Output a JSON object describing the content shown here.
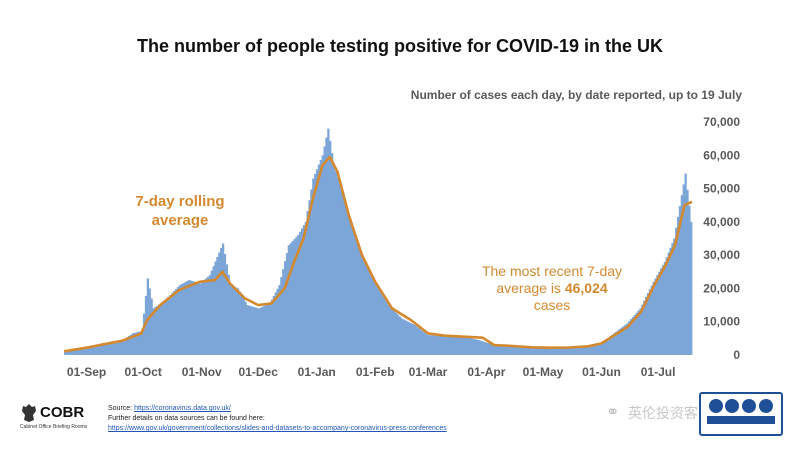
{
  "header": {
    "title": "The number of people testing positive for COVID-19 in the UK",
    "subtitle": "Number of cases each day, by date reported, up to 19 July"
  },
  "annotations": {
    "rolling_label": "7-day rolling average",
    "recent_text_1": "The most recent 7-day average is",
    "recent_value": "46,024",
    "recent_text_2": "cases"
  },
  "footer": {
    "org": "COBR",
    "org_sub": "Cabinet Office Briefing Rooms",
    "source_label": "Source:",
    "source_url": "https://coronavirus.data.gov.uk/",
    "details_text": "Further details on data sources can be found here:",
    "details_url": "https://www.gov.uk/government/collections/slides-and-datasets-to-accompany-coronavirus-press-conferences",
    "wechat_name": "英伦投资客"
  },
  "chart_data": {
    "type": "bar",
    "title": "The number of people testing positive for COVID-19 in the UK",
    "subtitle": "Number of cases each day, by date reported, up to 19 July",
    "x_ticks": [
      "01-Sep",
      "01-Oct",
      "01-Nov",
      "01-Dec",
      "01-Jan",
      "01-Feb",
      "01-Mar",
      "01-Apr",
      "01-May",
      "01-Jun",
      "01-Jul"
    ],
    "y_ticks": [
      "0",
      "10,000",
      "20,000",
      "30,000",
      "40,000",
      "50,000",
      "60,000",
      "70,000"
    ],
    "ylim": [
      0,
      70000
    ],
    "x_start": "2020-08-20",
    "x_end": "2021-07-19",
    "bar_color": "#7CA6D8",
    "line_color": "#D4892E",
    "grid": false,
    "series": [
      {
        "name": "Daily cases",
        "kind": "bar",
        "points": [
          [
            "2020-08-20",
            1200
          ],
          [
            "2020-09-01",
            2500
          ],
          [
            "2020-09-10",
            3500
          ],
          [
            "2020-09-20",
            4500
          ],
          [
            "2020-09-25",
            6500
          ],
          [
            "2020-09-30",
            7200
          ],
          [
            "2020-10-03",
            23000
          ],
          [
            "2020-10-06",
            14000
          ],
          [
            "2020-10-10",
            15500
          ],
          [
            "2020-10-15",
            18000
          ],
          [
            "2020-10-20",
            21000
          ],
          [
            "2020-10-25",
            22500
          ],
          [
            "2020-10-31",
            21500
          ],
          [
            "2020-11-05",
            24000
          ],
          [
            "2020-11-12",
            33500
          ],
          [
            "2020-11-16",
            21000
          ],
          [
            "2020-11-20",
            20000
          ],
          [
            "2020-11-25",
            15000
          ],
          [
            "2020-12-01",
            14000
          ],
          [
            "2020-12-07",
            15500
          ],
          [
            "2020-12-12",
            21000
          ],
          [
            "2020-12-17",
            33000
          ],
          [
            "2020-12-22",
            36000
          ],
          [
            "2020-12-26",
            40000
          ],
          [
            "2020-12-30",
            53000
          ],
          [
            "2021-01-04",
            60000
          ],
          [
            "2021-01-07",
            68000
          ],
          [
            "2021-01-10",
            57000
          ],
          [
            "2021-01-15",
            48000
          ],
          [
            "2021-01-20",
            38000
          ],
          [
            "2021-01-25",
            30000
          ],
          [
            "2021-02-01",
            22000
          ],
          [
            "2021-02-08",
            15000
          ],
          [
            "2021-02-15",
            11000
          ],
          [
            "2021-02-22",
            9000
          ],
          [
            "2021-03-01",
            6000
          ],
          [
            "2021-03-10",
            5500
          ],
          [
            "2021-03-20",
            5500
          ],
          [
            "2021-03-28",
            4500
          ],
          [
            "2021-04-05",
            3000
          ],
          [
            "2021-04-15",
            2800
          ],
          [
            "2021-04-25",
            2300
          ],
          [
            "2021-05-05",
            2200
          ],
          [
            "2021-05-15",
            2200
          ],
          [
            "2021-05-25",
            2800
          ],
          [
            "2021-06-01",
            3500
          ],
          [
            "2021-06-08",
            6500
          ],
          [
            "2021-06-15",
            9500
          ],
          [
            "2021-06-22",
            14000
          ],
          [
            "2021-06-29",
            22000
          ],
          [
            "2021-07-05",
            28000
          ],
          [
            "2021-07-10",
            35000
          ],
          [
            "2021-07-14",
            48000
          ],
          [
            "2021-07-16",
            54500
          ],
          [
            "2021-07-19",
            40000
          ]
        ]
      },
      {
        "name": "7-day rolling average",
        "kind": "line",
        "points": [
          [
            "2020-08-20",
            1100
          ],
          [
            "2020-09-01",
            2200
          ],
          [
            "2020-09-10",
            3200
          ],
          [
            "2020-09-20",
            4300
          ],
          [
            "2020-09-30",
            6500
          ],
          [
            "2020-10-03",
            10500
          ],
          [
            "2020-10-10",
            15000
          ],
          [
            "2020-10-20",
            19500
          ],
          [
            "2020-10-31",
            22000
          ],
          [
            "2020-11-08",
            22500
          ],
          [
            "2020-11-12",
            25000
          ],
          [
            "2020-11-16",
            21500
          ],
          [
            "2020-11-24",
            17000
          ],
          [
            "2020-12-01",
            15000
          ],
          [
            "2020-12-08",
            15500
          ],
          [
            "2020-12-15",
            20000
          ],
          [
            "2020-12-20",
            28000
          ],
          [
            "2020-12-25",
            35000
          ],
          [
            "2020-12-30",
            47000
          ],
          [
            "2021-01-04",
            57000
          ],
          [
            "2021-01-08",
            59500
          ],
          [
            "2021-01-12",
            55000
          ],
          [
            "2021-01-18",
            42000
          ],
          [
            "2021-01-25",
            30000
          ],
          [
            "2021-02-01",
            22000
          ],
          [
            "2021-02-10",
            14000
          ],
          [
            "2021-02-20",
            10500
          ],
          [
            "2021-03-01",
            6500
          ],
          [
            "2021-03-10",
            5800
          ],
          [
            "2021-03-20",
            5500
          ],
          [
            "2021-03-30",
            5200
          ],
          [
            "2021-04-05",
            3000
          ],
          [
            "2021-04-15",
            2700
          ],
          [
            "2021-04-25",
            2300
          ],
          [
            "2021-05-05",
            2200
          ],
          [
            "2021-05-15",
            2250
          ],
          [
            "2021-05-25",
            2600
          ],
          [
            "2021-06-01",
            3500
          ],
          [
            "2021-06-08",
            6000
          ],
          [
            "2021-06-15",
            8500
          ],
          [
            "2021-06-22",
            13000
          ],
          [
            "2021-06-29",
            21000
          ],
          [
            "2021-07-05",
            27000
          ],
          [
            "2021-07-10",
            33000
          ],
          [
            "2021-07-15",
            45000
          ],
          [
            "2021-07-19",
            46024
          ]
        ]
      }
    ]
  }
}
